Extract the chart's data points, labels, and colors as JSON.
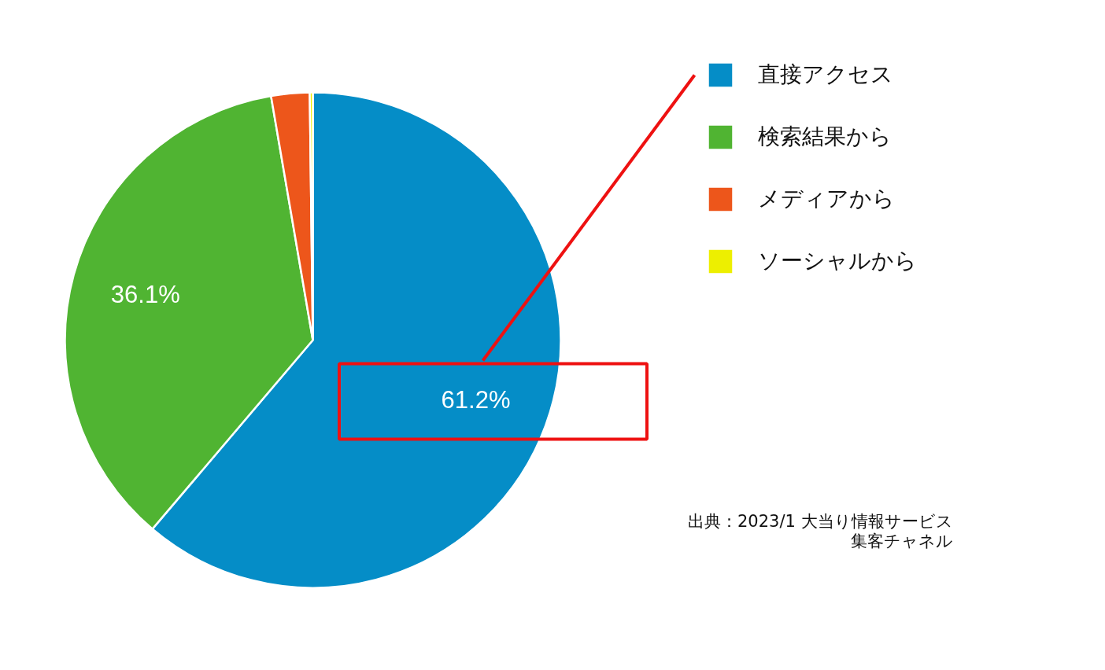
{
  "chart_data": {
    "type": "pie",
    "categories": [
      "直接アクセス",
      "検索結果から",
      "メディアから",
      "ソーシャルから"
    ],
    "values": [
      61.2,
      36.1,
      2.5,
      0.2
    ],
    "colors": [
      "#058dc7",
      "#50b432",
      "#ed561b",
      "#edef00"
    ],
    "value_labels": [
      "61.2%",
      "36.1%",
      null,
      null
    ],
    "legend": "top right",
    "annotations": [
      "出典：2023/1 大当り情報サービス",
      "集客チャネル"
    ]
  }
}
